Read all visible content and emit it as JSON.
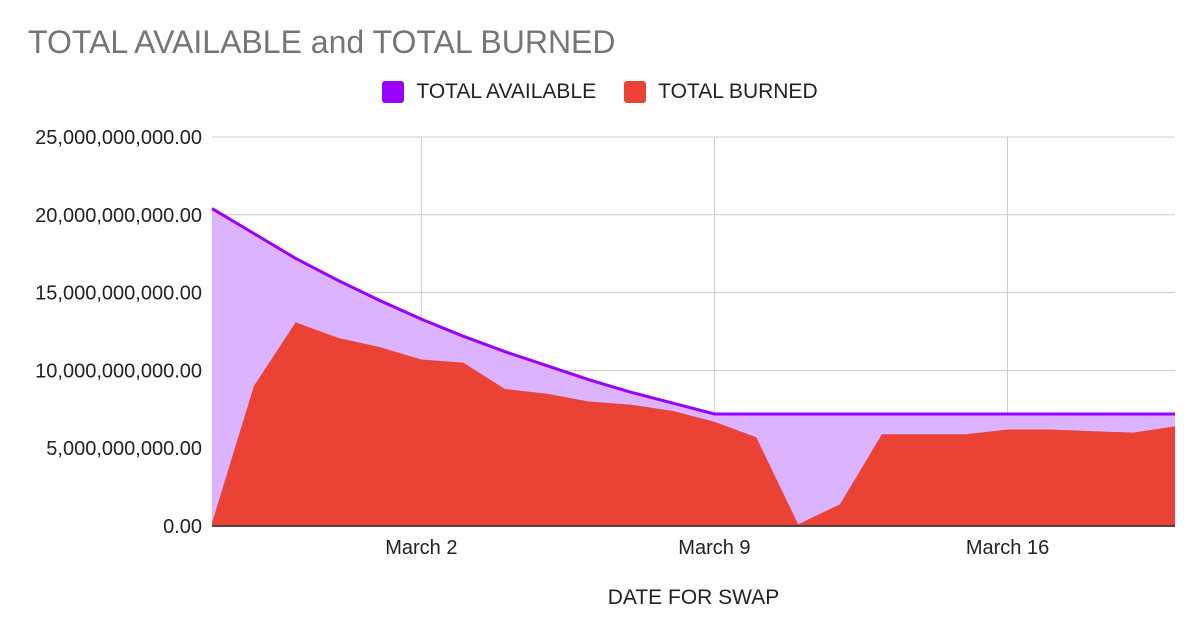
{
  "chart_data": {
    "type": "area",
    "title": "TOTAL AVAILABLE and TOTAL BURNED",
    "xlabel": "DATE FOR SWAP",
    "ylabel": "",
    "ylim": [
      0,
      25000000000
    ],
    "yticks": [
      0,
      5000000000,
      10000000000,
      15000000000,
      20000000000,
      25000000000
    ],
    "ytick_labels": [
      "0.00",
      "5,000,000,000.00",
      "10,000,000,000.00",
      "15,000,000,000.00",
      "20,000,000,000.00",
      "25,000,000,000.00"
    ],
    "xticks": [
      {
        "label": "March 2",
        "date": "March 2"
      },
      {
        "label": "March 9",
        "date": "March 9"
      },
      {
        "label": "March 16",
        "date": "March 16"
      }
    ],
    "x": [
      "Feb 25",
      "Feb 26",
      "Feb 27",
      "Feb 28",
      "Mar 1",
      "Mar 2",
      "Mar 3",
      "Mar 4",
      "Mar 5",
      "Mar 6",
      "Mar 7",
      "Mar 8",
      "Mar 9",
      "Mar 10",
      "Mar 11",
      "Mar 12",
      "Mar 13",
      "Mar 14",
      "Mar 15",
      "Mar 16",
      "Mar 17",
      "Mar 18",
      "Mar 19",
      "Mar 20"
    ],
    "legend_position": "top",
    "grid": true,
    "series": [
      {
        "name": "TOTAL AVAILABLE",
        "color": "#9900ff",
        "fill": "#dcb3ff",
        "values": [
          20400000000,
          18800000000,
          17200000000,
          15800000000,
          14500000000,
          13300000000,
          12200000000,
          11200000000,
          10300000000,
          9400000000,
          8600000000,
          7900000000,
          7200000000,
          7200000000,
          7200000000,
          7200000000,
          7200000000,
          7200000000,
          7200000000,
          7200000000,
          7200000000,
          7200000000,
          7200000000,
          7200000000
        ]
      },
      {
        "name": "TOTAL BURNED",
        "color": "#ea4335",
        "fill": "#ea4335",
        "values": [
          200000000,
          9000000000,
          13100000000,
          12100000000,
          11500000000,
          10700000000,
          10500000000,
          8800000000,
          8500000000,
          8000000000,
          7800000000,
          7400000000,
          6700000000,
          5700000000,
          100000000,
          1400000000,
          5900000000,
          5900000000,
          5900000000,
          6200000000,
          6200000000,
          6100000000,
          6000000000,
          6400000000
        ]
      }
    ]
  }
}
